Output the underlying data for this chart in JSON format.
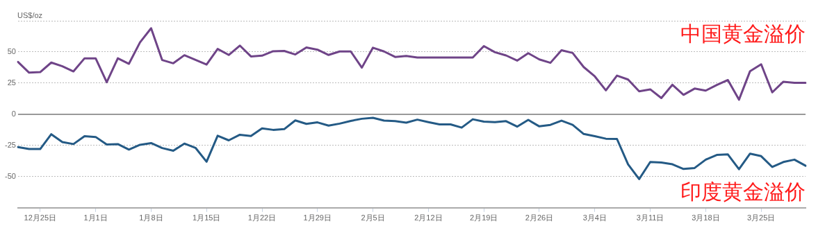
{
  "chart_data": {
    "type": "line",
    "ylabel": "US$/oz",
    "categories": [
      null,
      null,
      "12月25日",
      null,
      null,
      null,
      null,
      "1月1日",
      null,
      null,
      null,
      null,
      "1月8日",
      null,
      null,
      null,
      null,
      "1月15日",
      null,
      null,
      null,
      null,
      "1月22日",
      null,
      null,
      null,
      null,
      "1月29日",
      null,
      null,
      null,
      null,
      "2月5日",
      null,
      null,
      null,
      null,
      "2月12日",
      null,
      null,
      null,
      null,
      "2月19日",
      null,
      null,
      null,
      null,
      "2月26日",
      null,
      null,
      null,
      null,
      "3月4日",
      null,
      null,
      null,
      null,
      "3月11日",
      null,
      null,
      null,
      null,
      "3月18日",
      null,
      null,
      null,
      null,
      "3月25日",
      null,
      null,
      null,
      null
    ],
    "series": [
      {
        "name": "中国黄金溢价",
        "color": "#6f4488",
        "values": [
          42,
          33.4,
          33.8,
          41.5,
          38.5,
          34.4,
          44.9,
          44.9,
          25.7,
          44.9,
          40.5,
          57.7,
          69,
          43.5,
          40.9,
          47.4,
          43.7,
          39.9,
          52.4,
          47.6,
          55.1,
          46.4,
          47,
          50.6,
          50.8,
          48,
          53.6,
          51.8,
          47.6,
          50.4,
          50.4,
          37.4,
          53.4,
          50.4,
          46,
          46.8,
          45.5,
          45.5,
          45.5,
          45.5,
          45.5,
          45.5,
          54.7,
          49.8,
          47.2,
          43.1,
          49,
          44,
          41.3,
          51.4,
          49.2,
          37.9,
          30.4,
          19.2,
          31,
          27.9,
          18.4,
          20,
          13,
          23.7,
          15.6,
          20.6,
          19,
          23.5,
          27.5,
          11.7,
          34.6,
          40.1,
          17.6,
          26.1,
          25.3,
          25.3
        ]
      },
      {
        "name": "印度黄金溢价",
        "color": "#245a85",
        "values": [
          -26.3,
          -27.9,
          -27.9,
          -16,
          -22.3,
          -23.9,
          -17.6,
          -18.2,
          -24.3,
          -23.9,
          -28.3,
          -24.5,
          -23.1,
          -27.1,
          -29.2,
          -23.5,
          -26.9,
          -38.1,
          -17.2,
          -20.9,
          -16.4,
          -17.4,
          -11.3,
          -12.5,
          -11.9,
          -4.9,
          -7.7,
          -6.5,
          -9.1,
          -7.5,
          -5.3,
          -3.6,
          -2.8,
          -5.1,
          -5.5,
          -6.7,
          -4.3,
          -6.3,
          -8.1,
          -8.1,
          -10.7,
          -4,
          -5.9,
          -6.3,
          -5.5,
          -9.9,
          -4.5,
          -9.7,
          -8.5,
          -5.1,
          -8.5,
          -15.8,
          -17.6,
          -19.6,
          -19.8,
          -40.1,
          -52,
          -38.3,
          -38.7,
          -40.1,
          -43.9,
          -43.1,
          -36.4,
          -32.6,
          -32.2,
          -44.1,
          -31.6,
          -33.6,
          -42.3,
          -38.3,
          -36.4,
          -41.3
        ]
      }
    ],
    "ylim": [
      -75,
      75
    ],
    "yticks": [
      -50,
      -25,
      0,
      25,
      50,
      {
        "value": 75,
        "label": null
      }
    ],
    "ref_lines": [
      {
        "axis": "y",
        "value": 0,
        "color": "#999999",
        "line_style": "solid"
      }
    ],
    "grid": "y",
    "legend": false,
    "marker": "none",
    "line_style": "solid"
  }
}
